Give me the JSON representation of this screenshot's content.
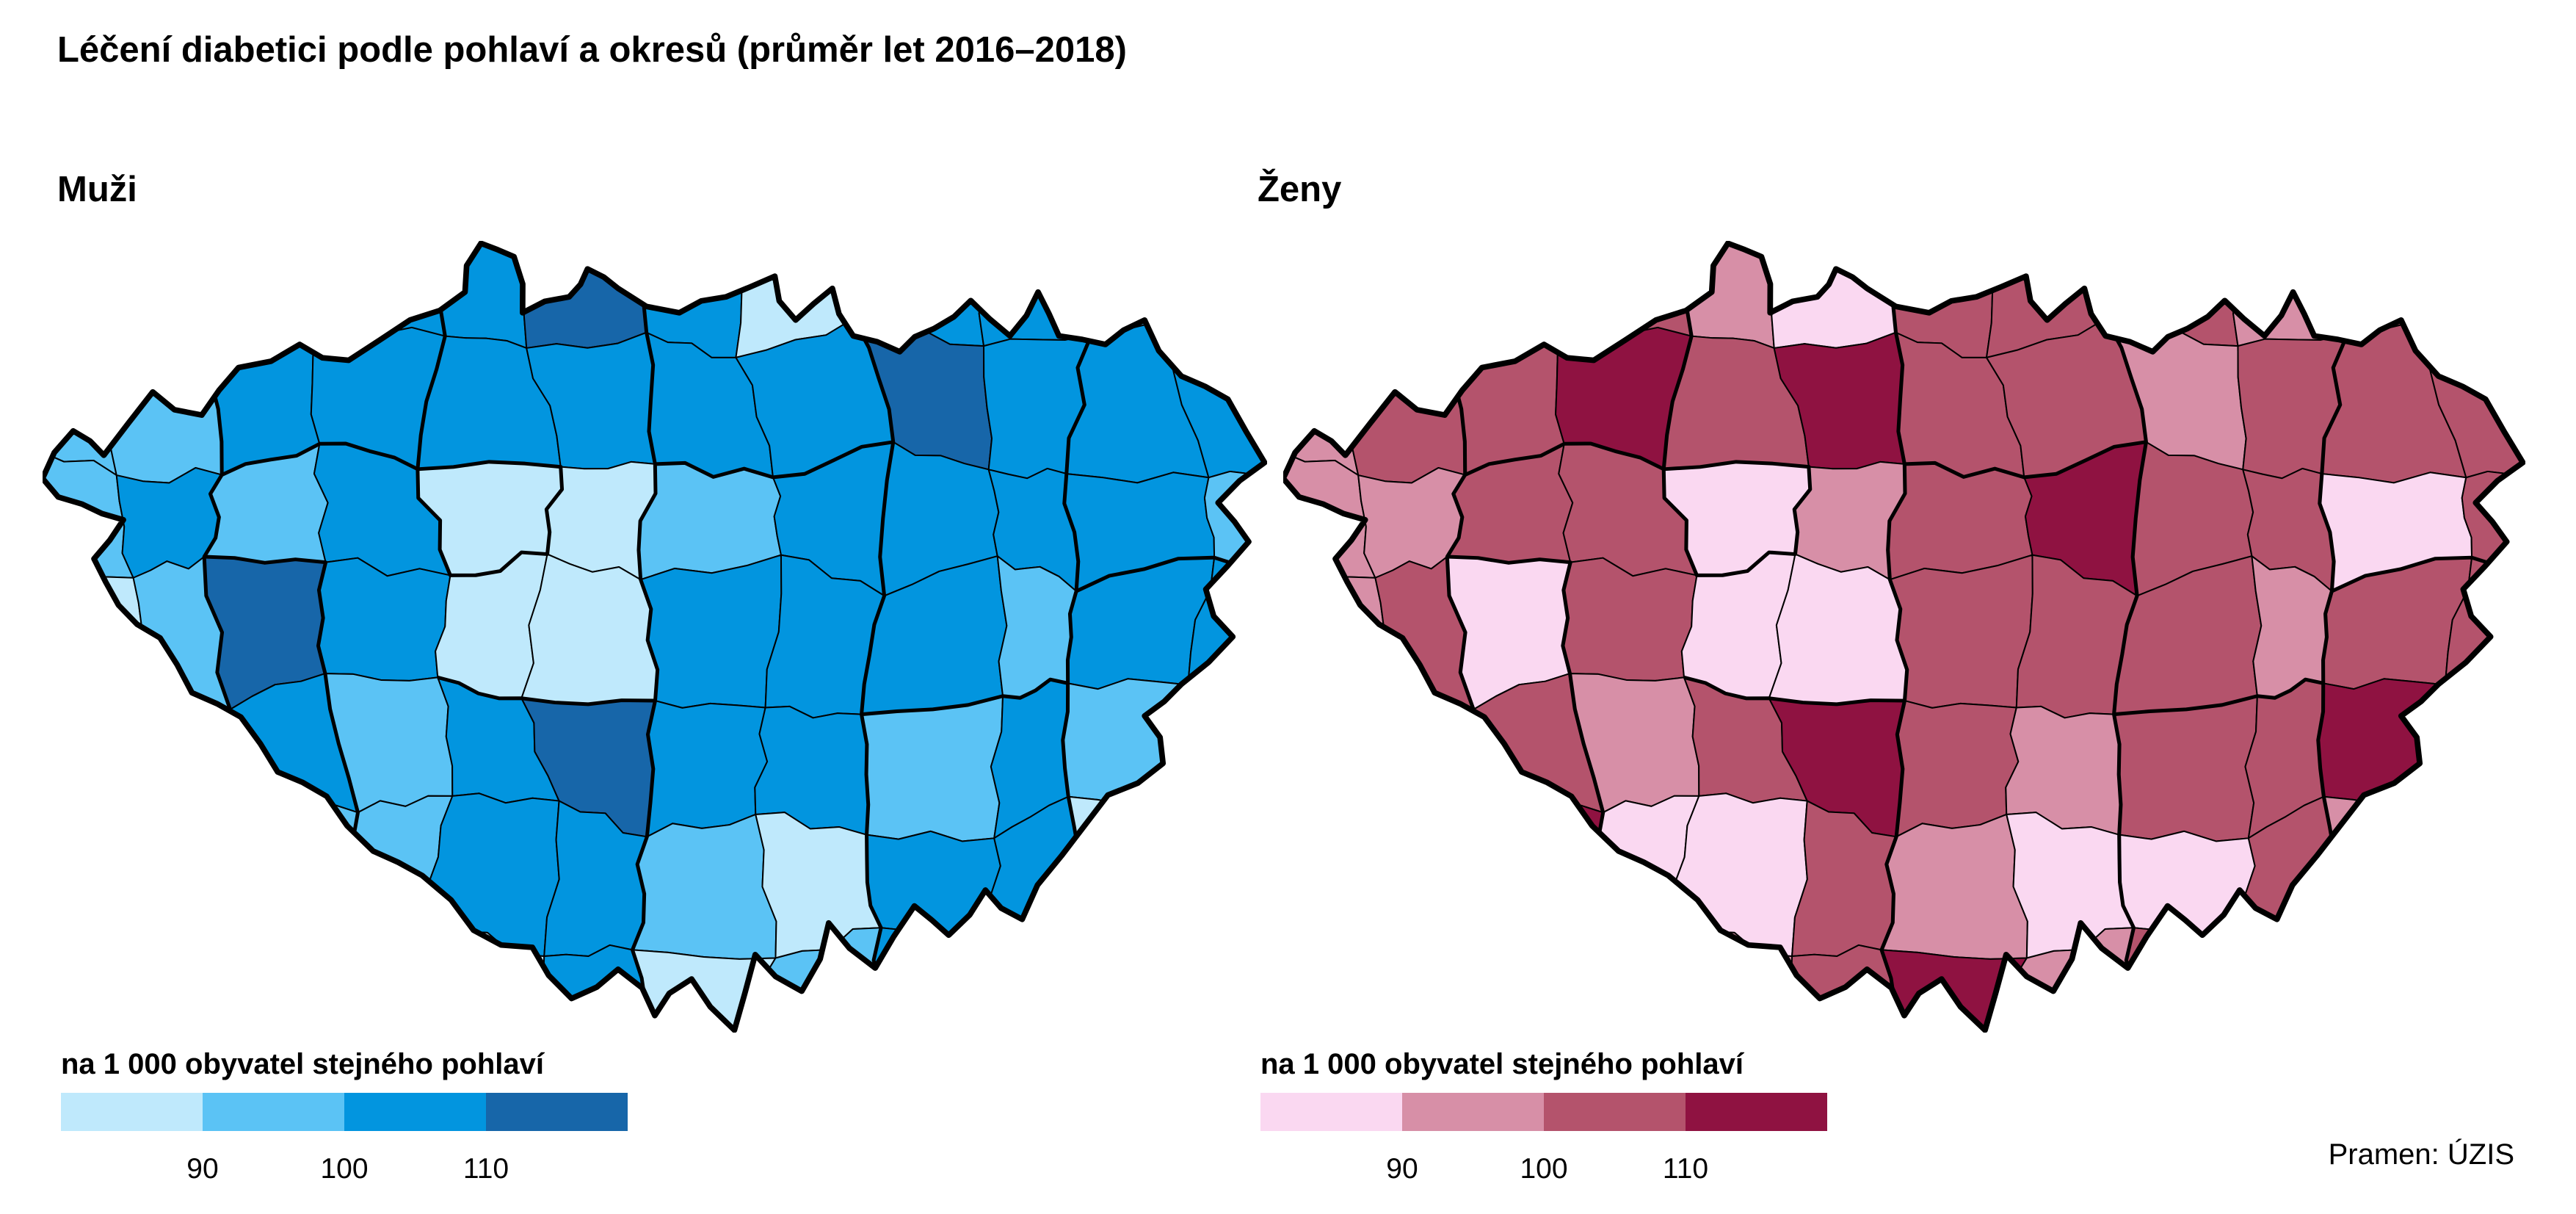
{
  "title": "Léčení diabetici podle pohlaví a okresů (průměr let 2016–2018)",
  "legend": {
    "caption": "na 1 000 obyvatel stejného pohlaví",
    "ticks": [
      "90",
      "100",
      "110"
    ]
  },
  "source": "Pramen: ÚZIS",
  "chart_data": {
    "type": "heatmap",
    "subtype": "choropleth, districts (okresy) of the Czech Republic, two small multiples",
    "title": "Léčení diabetici podle pohlaví a okresů (průměr let 2016–2018)",
    "unit": "na 1 000 obyvatel stejného pohlaví",
    "class_breaks": [
      90,
      100,
      110
    ],
    "classes": [
      "< 90",
      "90–100",
      "100–110",
      "> 110"
    ],
    "legend_position": "bottom-left under each map",
    "source": "Pramen: ÚZIS",
    "series": [
      {
        "name": "Muži",
        "palette": [
          "#BFE9FC",
          "#5BC3F5",
          "#0295DF",
          "#1766A9"
        ],
        "class_grid": [
          [
            1,
            1,
            1,
            2,
            2,
            3,
            2,
            0,
            2,
            2,
            1,
            2
          ],
          [
            1,
            1,
            2,
            2,
            2,
            2,
            2,
            2,
            3,
            2,
            2,
            2
          ],
          [
            1,
            2,
            1,
            2,
            0,
            0,
            1,
            2,
            2,
            2,
            2,
            1
          ],
          [
            0,
            1,
            3,
            2,
            0,
            0,
            2,
            2,
            2,
            1,
            2,
            2
          ],
          [
            1,
            1,
            2,
            1,
            2,
            3,
            2,
            2,
            1,
            2,
            1,
            1
          ],
          [
            1,
            2,
            1,
            1,
            2,
            2,
            1,
            0,
            2,
            2,
            0,
            1
          ],
          [
            1,
            1,
            2,
            0,
            0,
            2,
            0,
            1,
            2,
            1,
            1,
            1
          ]
        ]
      },
      {
        "name": "Ženy",
        "palette": [
          "#FAD8F1",
          "#D78FA7",
          "#B4536C",
          "#8F1241"
        ],
        "class_grid": [
          [
            1,
            1,
            1,
            2,
            1,
            0,
            2,
            2,
            2,
            1,
            2,
            2
          ],
          [
            1,
            2,
            2,
            3,
            2,
            3,
            2,
            2,
            1,
            2,
            2,
            2
          ],
          [
            1,
            1,
            2,
            2,
            0,
            1,
            2,
            3,
            2,
            2,
            0,
            2
          ],
          [
            1,
            2,
            0,
            2,
            0,
            0,
            2,
            2,
            2,
            1,
            2,
            2
          ],
          [
            1,
            3,
            2,
            1,
            2,
            3,
            2,
            1,
            2,
            2,
            3,
            2
          ],
          [
            1,
            2,
            3,
            0,
            0,
            2,
            1,
            0,
            0,
            2,
            1,
            2
          ],
          [
            1,
            1,
            0,
            1,
            1,
            2,
            3,
            1,
            2,
            1,
            1,
            1
          ]
        ]
      }
    ]
  }
}
